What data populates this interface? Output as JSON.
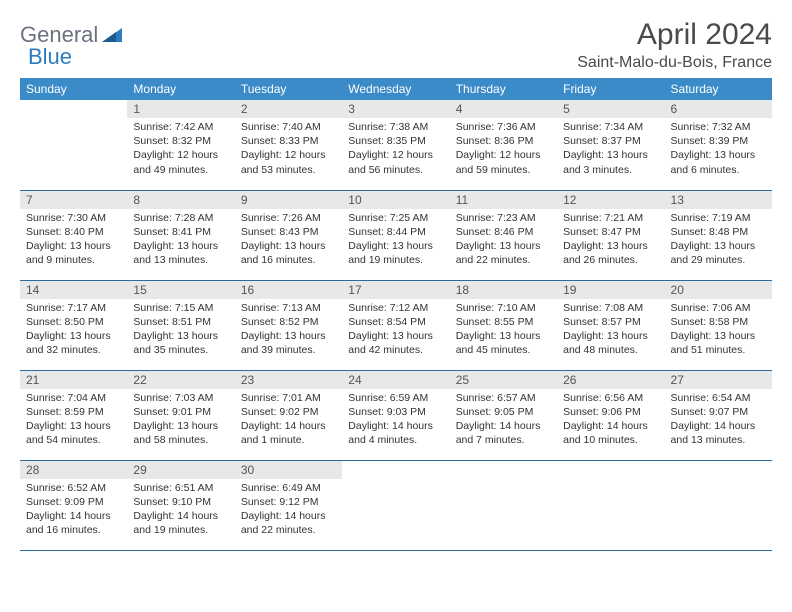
{
  "brand": {
    "part1": "General",
    "part2": "Blue"
  },
  "title": "April 2024",
  "location": "Saint-Malo-du-Bois, France",
  "colors": {
    "header_bg": "#3b8bc9",
    "header_text": "#ffffff",
    "daynum_bg": "#e8e8e8",
    "row_border": "#2e6a9e",
    "brand_gray": "#6b7280",
    "brand_blue": "#2e7cc0",
    "text": "#333333",
    "title_color": "#4a4a4a",
    "page_bg": "#ffffff"
  },
  "weekdays": [
    "Sunday",
    "Monday",
    "Tuesday",
    "Wednesday",
    "Thursday",
    "Friday",
    "Saturday"
  ],
  "weeks": [
    [
      null,
      {
        "n": "1",
        "sr": "7:42 AM",
        "ss": "8:32 PM",
        "dl": "12 hours and 49 minutes."
      },
      {
        "n": "2",
        "sr": "7:40 AM",
        "ss": "8:33 PM",
        "dl": "12 hours and 53 minutes."
      },
      {
        "n": "3",
        "sr": "7:38 AM",
        "ss": "8:35 PM",
        "dl": "12 hours and 56 minutes."
      },
      {
        "n": "4",
        "sr": "7:36 AM",
        "ss": "8:36 PM",
        "dl": "12 hours and 59 minutes."
      },
      {
        "n": "5",
        "sr": "7:34 AM",
        "ss": "8:37 PM",
        "dl": "13 hours and 3 minutes."
      },
      {
        "n": "6",
        "sr": "7:32 AM",
        "ss": "8:39 PM",
        "dl": "13 hours and 6 minutes."
      }
    ],
    [
      {
        "n": "7",
        "sr": "7:30 AM",
        "ss": "8:40 PM",
        "dl": "13 hours and 9 minutes."
      },
      {
        "n": "8",
        "sr": "7:28 AM",
        "ss": "8:41 PM",
        "dl": "13 hours and 13 minutes."
      },
      {
        "n": "9",
        "sr": "7:26 AM",
        "ss": "8:43 PM",
        "dl": "13 hours and 16 minutes."
      },
      {
        "n": "10",
        "sr": "7:25 AM",
        "ss": "8:44 PM",
        "dl": "13 hours and 19 minutes."
      },
      {
        "n": "11",
        "sr": "7:23 AM",
        "ss": "8:46 PM",
        "dl": "13 hours and 22 minutes."
      },
      {
        "n": "12",
        "sr": "7:21 AM",
        "ss": "8:47 PM",
        "dl": "13 hours and 26 minutes."
      },
      {
        "n": "13",
        "sr": "7:19 AM",
        "ss": "8:48 PM",
        "dl": "13 hours and 29 minutes."
      }
    ],
    [
      {
        "n": "14",
        "sr": "7:17 AM",
        "ss": "8:50 PM",
        "dl": "13 hours and 32 minutes."
      },
      {
        "n": "15",
        "sr": "7:15 AM",
        "ss": "8:51 PM",
        "dl": "13 hours and 35 minutes."
      },
      {
        "n": "16",
        "sr": "7:13 AM",
        "ss": "8:52 PM",
        "dl": "13 hours and 39 minutes."
      },
      {
        "n": "17",
        "sr": "7:12 AM",
        "ss": "8:54 PM",
        "dl": "13 hours and 42 minutes."
      },
      {
        "n": "18",
        "sr": "7:10 AM",
        "ss": "8:55 PM",
        "dl": "13 hours and 45 minutes."
      },
      {
        "n": "19",
        "sr": "7:08 AM",
        "ss": "8:57 PM",
        "dl": "13 hours and 48 minutes."
      },
      {
        "n": "20",
        "sr": "7:06 AM",
        "ss": "8:58 PM",
        "dl": "13 hours and 51 minutes."
      }
    ],
    [
      {
        "n": "21",
        "sr": "7:04 AM",
        "ss": "8:59 PM",
        "dl": "13 hours and 54 minutes."
      },
      {
        "n": "22",
        "sr": "7:03 AM",
        "ss": "9:01 PM",
        "dl": "13 hours and 58 minutes."
      },
      {
        "n": "23",
        "sr": "7:01 AM",
        "ss": "9:02 PM",
        "dl": "14 hours and 1 minute."
      },
      {
        "n": "24",
        "sr": "6:59 AM",
        "ss": "9:03 PM",
        "dl": "14 hours and 4 minutes."
      },
      {
        "n": "25",
        "sr": "6:57 AM",
        "ss": "9:05 PM",
        "dl": "14 hours and 7 minutes."
      },
      {
        "n": "26",
        "sr": "6:56 AM",
        "ss": "9:06 PM",
        "dl": "14 hours and 10 minutes."
      },
      {
        "n": "27",
        "sr": "6:54 AM",
        "ss": "9:07 PM",
        "dl": "14 hours and 13 minutes."
      }
    ],
    [
      {
        "n": "28",
        "sr": "6:52 AM",
        "ss": "9:09 PM",
        "dl": "14 hours and 16 minutes."
      },
      {
        "n": "29",
        "sr": "6:51 AM",
        "ss": "9:10 PM",
        "dl": "14 hours and 19 minutes."
      },
      {
        "n": "30",
        "sr": "6:49 AM",
        "ss": "9:12 PM",
        "dl": "14 hours and 22 minutes."
      },
      null,
      null,
      null,
      null
    ]
  ],
  "labels": {
    "sunrise": "Sunrise: ",
    "sunset": "Sunset: ",
    "daylight": "Daylight: "
  }
}
